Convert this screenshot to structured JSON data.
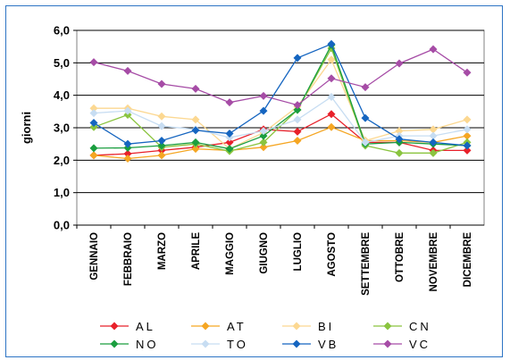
{
  "chart_data": {
    "type": "line",
    "ylabel": "giorni",
    "ylim": [
      0,
      6
    ],
    "yticks": [
      "0,0",
      "1,0",
      "2,0",
      "3,0",
      "4,0",
      "5,0",
      "6,0"
    ],
    "categories": [
      "GENNAIO",
      "FEBBRAIO",
      "MARZO",
      "APRILE",
      "MAGGIO",
      "GIUGNO",
      "LUGLIO",
      "AGOSTO",
      "SETTEMBRE",
      "OTTOBRE",
      "NOVEMBRE",
      "DICEMBRE"
    ],
    "grid": true,
    "legend_position": "bottom",
    "series": [
      {
        "name": "AL",
        "color": "#e8202a",
        "values": [
          2.15,
          2.2,
          2.3,
          2.4,
          2.55,
          2.95,
          2.88,
          3.42,
          2.55,
          2.55,
          2.3,
          2.3
        ]
      },
      {
        "name": "AT",
        "color": "#f5a623",
        "values": [
          2.15,
          2.05,
          2.15,
          2.35,
          2.3,
          2.4,
          2.6,
          3.02,
          2.6,
          2.6,
          2.55,
          2.75
        ]
      },
      {
        "name": "BI",
        "color": "#fcd891",
        "values": [
          3.6,
          3.6,
          3.35,
          3.25,
          2.35,
          2.85,
          3.65,
          5.1,
          2.6,
          2.9,
          2.95,
          3.25
        ]
      },
      {
        "name": "CN",
        "color": "#8ac43f",
        "values": [
          3.02,
          3.4,
          2.4,
          2.5,
          2.28,
          2.55,
          3.55,
          5.45,
          2.45,
          2.22,
          2.22,
          2.55
        ]
      },
      {
        "name": "NO",
        "color": "#1a9e3f",
        "values": [
          2.37,
          2.38,
          2.45,
          2.55,
          2.35,
          2.75,
          3.55,
          5.55,
          2.5,
          2.55,
          2.5,
          2.45
        ]
      },
      {
        "name": "TO",
        "color": "#c7ddf2",
        "values": [
          3.45,
          3.52,
          3.05,
          2.95,
          2.7,
          2.9,
          3.25,
          3.95,
          2.55,
          2.75,
          2.75,
          2.95
        ]
      },
      {
        "name": "VB",
        "color": "#1565c0",
        "values": [
          3.15,
          2.5,
          2.6,
          2.92,
          2.82,
          3.52,
          5.15,
          5.58,
          3.3,
          2.65,
          2.55,
          2.45
        ]
      },
      {
        "name": "VC",
        "color": "#a64ca6",
        "values": [
          5.02,
          4.75,
          4.35,
          4.2,
          3.78,
          3.98,
          3.7,
          4.52,
          4.25,
          4.98,
          5.42,
          4.7
        ]
      }
    ]
  }
}
